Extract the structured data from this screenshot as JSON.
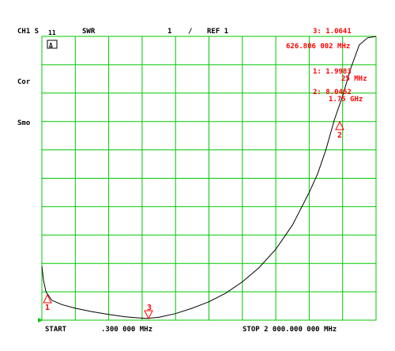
{
  "header": {
    "channel": "CH1 S",
    "param": "11",
    "format": "SWR",
    "scale": "1",
    "scale_unit": "/",
    "ref": "REF 1"
  },
  "annotations": {
    "delta_box": "Δ",
    "cor": "Cor",
    "smo": "Smo"
  },
  "markers": [
    {
      "id": 3,
      "label": "3",
      "readout_value": "3: 1.0641",
      "readout_freq": "626.806 002 MHz"
    },
    {
      "id": 1,
      "label": "1",
      "readout_value": "1: 1.9983",
      "readout_freq": "25 MHz"
    },
    {
      "id": 2,
      "label": "2",
      "readout_value": "2: 8.0462",
      "readout_freq": "1.75 GHz"
    }
  ],
  "footer": {
    "start_label": "START",
    "start_value": ".300 000 MHz",
    "stop_label": "STOP 2 000.000 000 MHz"
  },
  "colors": {
    "grid": "#00c800",
    "trace": "#000000",
    "marker": "#ff0000",
    "reference": "#00c800"
  },
  "chart_data": {
    "type": "line",
    "title": "",
    "xlabel": "",
    "ylabel": "",
    "x_unit": "MHz",
    "xlim": [
      0.3,
      2000
    ],
    "ylim": [
      1,
      11
    ],
    "grid": true,
    "series": [
      {
        "x": [
          0.3,
          10,
          25,
          60,
          120,
          200,
          300,
          400,
          500,
          580,
          626.8,
          700,
          800,
          900,
          1000,
          1100,
          1200,
          1300,
          1400,
          1500,
          1600,
          1650,
          1700,
          1750,
          1800,
          1850,
          1900,
          1950,
          2000
        ],
        "y": [
          2.9,
          2.4,
          1.9983,
          1.7,
          1.55,
          1.42,
          1.3,
          1.2,
          1.12,
          1.08,
          1.0641,
          1.1,
          1.23,
          1.42,
          1.65,
          1.95,
          2.35,
          2.85,
          3.5,
          4.35,
          5.5,
          6.15,
          7.0,
          8.0462,
          8.9,
          9.9,
          10.7,
          10.95,
          11.0
        ]
      }
    ]
  }
}
